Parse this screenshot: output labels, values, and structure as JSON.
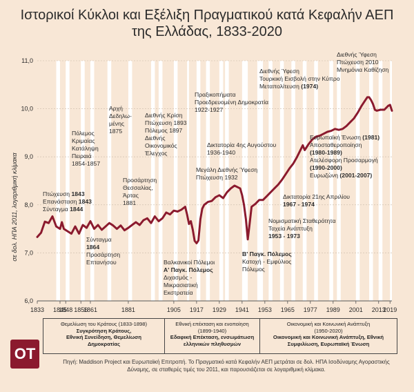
{
  "title_lines": [
    "Ιστορικοί Κύκλοι και Εξέλιξη Πραγματικού κατά Κεφαλήν ΑΕΠ",
    "της Ελλάδας, 1833-2020"
  ],
  "colors": {
    "line": "#8b1a2e",
    "background": "#f8e7d6",
    "band": "#ffffff",
    "text": "#2b2b2b",
    "axis": "#555555"
  },
  "chart_data": {
    "type": "line",
    "title": "Ιστορικοί Κύκλοι και Εξέλιξη Πραγματικού κατά Κεφαλήν ΑΕΠ της Ελλάδας, 1833-2020",
    "xlabel": "",
    "ylabel": "σε δολ. ΗΠΑ 2011, λογαριθμική κλίμακα",
    "ylim": [
      6.0,
      11.0
    ],
    "xlim": [
      1833,
      2020
    ],
    "scale_note": "log",
    "yticks": [
      "6,0",
      "7,0",
      "8,0",
      "9,0",
      "10,0",
      "11,0"
    ],
    "xticks": [
      "1833",
      "1845",
      "1848",
      "1856",
      "1861",
      "1881",
      "1905",
      "1917",
      "1929",
      "1941",
      "1953",
      "1965",
      "1977",
      "1989",
      "2001",
      "2013",
      "2019"
    ],
    "series": [
      {
        "values": [
          [
            1833,
            7.33
          ],
          [
            1835,
            7.42
          ],
          [
            1837,
            7.65
          ],
          [
            1839,
            7.62
          ],
          [
            1841,
            7.76
          ],
          [
            1843,
            7.55
          ],
          [
            1845,
            7.5
          ],
          [
            1846,
            7.64
          ],
          [
            1847,
            7.5
          ],
          [
            1849,
            7.45
          ],
          [
            1851,
            7.4
          ],
          [
            1853,
            7.55
          ],
          [
            1855,
            7.4
          ],
          [
            1857,
            7.58
          ],
          [
            1859,
            7.52
          ],
          [
            1861,
            7.66
          ],
          [
            1863,
            7.5
          ],
          [
            1865,
            7.58
          ],
          [
            1867,
            7.48
          ],
          [
            1869,
            7.55
          ],
          [
            1871,
            7.62
          ],
          [
            1873,
            7.57
          ],
          [
            1875,
            7.5
          ],
          [
            1877,
            7.57
          ],
          [
            1879,
            7.47
          ],
          [
            1881,
            7.52
          ],
          [
            1883,
            7.58
          ],
          [
            1885,
            7.64
          ],
          [
            1887,
            7.58
          ],
          [
            1889,
            7.68
          ],
          [
            1891,
            7.72
          ],
          [
            1893,
            7.62
          ],
          [
            1895,
            7.76
          ],
          [
            1897,
            7.66
          ],
          [
            1899,
            7.72
          ],
          [
            1901,
            7.84
          ],
          [
            1903,
            7.8
          ],
          [
            1905,
            7.88
          ],
          [
            1907,
            7.86
          ],
          [
            1909,
            7.9
          ],
          [
            1911,
            7.96
          ],
          [
            1912,
            7.8
          ],
          [
            1913,
            7.6
          ],
          [
            1914,
            7.66
          ],
          [
            1915,
            7.48
          ],
          [
            1916,
            7.25
          ],
          [
            1917,
            7.2
          ],
          [
            1918,
            7.26
          ],
          [
            1919,
            7.7
          ],
          [
            1920,
            7.92
          ],
          [
            1921,
            8.0
          ],
          [
            1923,
            8.06
          ],
          [
            1925,
            8.08
          ],
          [
            1927,
            8.16
          ],
          [
            1929,
            8.2
          ],
          [
            1931,
            8.14
          ],
          [
            1933,
            8.26
          ],
          [
            1935,
            8.34
          ],
          [
            1937,
            8.4
          ],
          [
            1939,
            8.36
          ],
          [
            1940,
            8.34
          ],
          [
            1941,
            8.2
          ],
          [
            1942,
            8.0
          ],
          [
            1943,
            7.7
          ],
          [
            1944,
            7.28
          ],
          [
            1945,
            7.62
          ],
          [
            1946,
            7.96
          ],
          [
            1948,
            8.02
          ],
          [
            1950,
            8.1
          ],
          [
            1952,
            8.1
          ],
          [
            1954,
            8.18
          ],
          [
            1956,
            8.26
          ],
          [
            1958,
            8.34
          ],
          [
            1960,
            8.42
          ],
          [
            1962,
            8.52
          ],
          [
            1964,
            8.64
          ],
          [
            1966,
            8.76
          ],
          [
            1968,
            8.86
          ],
          [
            1970,
            9.0
          ],
          [
            1972,
            9.16
          ],
          [
            1973,
            9.24
          ],
          [
            1974,
            9.14
          ],
          [
            1976,
            9.26
          ],
          [
            1978,
            9.36
          ],
          [
            1980,
            9.42
          ],
          [
            1982,
            9.44
          ],
          [
            1984,
            9.48
          ],
          [
            1986,
            9.52
          ],
          [
            1988,
            9.54
          ],
          [
            1990,
            9.58
          ],
          [
            1992,
            9.56
          ],
          [
            1994,
            9.58
          ],
          [
            1996,
            9.64
          ],
          [
            1998,
            9.72
          ],
          [
            2000,
            9.8
          ],
          [
            2002,
            9.92
          ],
          [
            2004,
            10.06
          ],
          [
            2006,
            10.18
          ],
          [
            2007,
            10.24
          ],
          [
            2008,
            10.24
          ],
          [
            2009,
            10.18
          ],
          [
            2010,
            10.1
          ],
          [
            2011,
            9.98
          ],
          [
            2012,
            9.96
          ],
          [
            2014,
            9.98
          ],
          [
            2016,
            9.98
          ],
          [
            2018,
            10.06
          ],
          [
            2019,
            10.08
          ],
          [
            2020,
            9.96
          ]
        ]
      }
    ],
    "bands": [
      [
        1843,
        1845
      ],
      [
        1848,
        1850
      ],
      [
        1856,
        1858
      ],
      [
        1861,
        1863
      ],
      [
        1870,
        1872
      ],
      [
        1881,
        1883
      ],
      [
        1893,
        1895
      ],
      [
        1897,
        1899
      ],
      [
        1905,
        1907
      ],
      [
        1912,
        1913
      ],
      [
        1917,
        1919
      ],
      [
        1922,
        1924
      ],
      [
        1929,
        1931
      ],
      [
        1932,
        1934
      ],
      [
        1941,
        1944
      ],
      [
        1949,
        1952
      ],
      [
        1955,
        1957
      ],
      [
        1961,
        1963
      ],
      [
        1967,
        1969
      ],
      [
        1973,
        1975
      ],
      [
        1979,
        1981
      ],
      [
        1987,
        1989
      ],
      [
        1991,
        1993
      ],
      [
        2001,
        2003
      ],
      [
        2008,
        2010
      ],
      [
        2013,
        2015
      ],
      [
        2019,
        2020
      ]
    ],
    "annotations": [
      {
        "lines": [
          [
            "Πτώχευση ",
            "1843"
          ],
          [
            "Επανάσταση ",
            "1843"
          ],
          [
            "Σύνταγμα ",
            "1844"
          ]
        ],
        "bold_tail": true
      },
      {
        "lines": [
          [
            "Πόλεμος"
          ],
          [
            "Κριμαίας"
          ],
          [
            "Κατάληψη"
          ],
          [
            "Πειραιά"
          ],
          [
            "1854-1857"
          ]
        ]
      },
      {
        "lines": [
          [
            "Σύνταγμα"
          ],
          [
            "1864",
            "bold"
          ],
          [
            "Προσάρτηση"
          ],
          [
            "Επτανήσου"
          ]
        ]
      },
      {
        "lines": [
          [
            "Αρχή"
          ],
          [
            "Δεδηλω-"
          ],
          [
            "μένης"
          ],
          [
            "1875"
          ]
        ]
      },
      {
        "lines": [
          [
            "Προσάρτηση"
          ],
          [
            "Θεσσαλίας,"
          ],
          [
            "Άρτας"
          ],
          [
            "1881"
          ]
        ]
      },
      {
        "lines": [
          [
            "Διεθνής Κρίση"
          ],
          [
            "Πτώχευση 1893"
          ],
          [
            "Πόλεμος 1897"
          ],
          [
            "Διεθνής"
          ],
          [
            "Οικονομικός"
          ],
          [
            "Έλεγχος"
          ]
        ]
      },
      {
        "lines": [
          [
            "Βαλκανικοί Πόλεμοι"
          ],
          [
            "Α' Παγκ. Πόλεμος",
            "bold"
          ],
          [
            "Διχασμός -"
          ],
          [
            "Μικρασιατική"
          ],
          [
            "Εκστρατεία"
          ]
        ]
      },
      {
        "lines": [
          [
            "Πραξικοπήματα"
          ],
          [
            "Προεδρευομένη Δημοκρατία"
          ],
          [
            "1922-1927"
          ]
        ]
      },
      {
        "lines": [
          [
            "Δικτατορία 4ης Αυγούστου"
          ],
          [
            "1936-1940"
          ]
        ]
      },
      {
        "lines": [
          [
            "Μεγάλη Διεθνής Ύφεση"
          ],
          [
            "Πτώχευση 1932"
          ]
        ]
      },
      {
        "lines": [
          [
            "Β' Παγκ. Πόλεμος",
            "bold"
          ],
          [
            "Κατοχή - Εμφύλιος"
          ],
          [
            "Πόλεμος"
          ]
        ]
      },
      {
        "lines": [
          [
            "Διεθνής Ύφεση"
          ],
          [
            "Τουρκική Εισβολή στην Κύπρο"
          ],
          [
            "Μεταπολίτευση ",
            "(1974)"
          ]
        ]
      },
      {
        "lines": [
          [
            "Δικτατορία 21ης Απριλίου"
          ],
          [
            "1967 - 1974",
            "bold"
          ]
        ]
      },
      {
        "lines": [
          [
            "Νομισματική Σταθερότητα"
          ],
          [
            "Ταχεία Ανάπτυξη"
          ],
          [
            "1953 - 1973",
            "bold"
          ]
        ]
      },
      {
        "lines": [
          [
            "Ευρωπαϊκή Ένωση ",
            "(1981)"
          ],
          [
            "Αποσταθεροποίηση"
          ],
          [
            "(1980-1989)",
            "bold"
          ],
          [
            "Ατελέσφορη Προσαρμογή"
          ],
          [
            "(1990-2000)",
            "bold"
          ],
          [
            "Ευρωζώνη ",
            "(2001-2007)"
          ]
        ]
      },
      {
        "lines": [
          [
            "Διεθνής Ύφεση"
          ],
          [
            "Πτώχευση 2010"
          ],
          [
            "Μνημόνια Καθίζηση"
          ]
        ]
      }
    ]
  },
  "periods": [
    {
      "heading": "Θεμελίωση του Κράτους (1833-1898)",
      "sub_lines": [
        "Συγκρότηση Κράτους,",
        "Εθνική Συνείδηση, Θεμελίωση",
        "Δημοκρατίας"
      ]
    },
    {
      "heading": "Εθνική επέκταση και ενοποίηση",
      "heading2": "(1899-1940)",
      "sub_lines": [
        "Εδαφική Επέκταση, ενσωμάτωση",
        "ελληνικών πληθυσμών"
      ]
    },
    {
      "heading": "Οικονομική και Κοινωνική Ανάπτυξη",
      "heading2": "(1950-2020)",
      "sub_lines": [
        "Οικονομική και Κοινωνική Ανάπτυξη, Εθνική",
        "Συμφιλίωση, Ευρωπαϊκή Ένωση"
      ]
    }
  ],
  "logo_text": "OT",
  "source_text": "Πηγή: Maddison Project και Ευρωπαϊκή Επιτροπή. Το Πραγματικό κατά Κεφαλήν ΑΕΠ μετράται σε δολ. ΗΠΑ Ισοδύναμης Αγοραστικής Δύναμης, σε σταθερές τιμές του 2011, και παρουσιάζεται σε λογαριθμική κλίμακα."
}
